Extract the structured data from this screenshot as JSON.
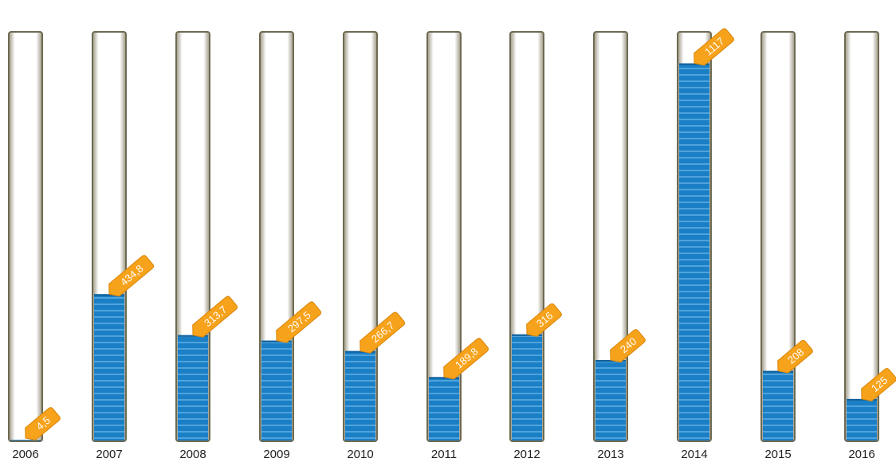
{
  "chart_data": {
    "type": "bar",
    "categories": [
      "2006",
      "2007",
      "2008",
      "2009",
      "2010",
      "2011",
      "2012",
      "2013",
      "2014",
      "2015",
      "2016"
    ],
    "values": [
      4.5,
      434.8,
      313.7,
      297.5,
      266.7,
      189.8,
      316,
      240,
      1117,
      208,
      125
    ],
    "value_labels": [
      "4,5",
      "434,8",
      "313,7",
      "297,5",
      "266,7",
      "189,8",
      "316",
      "240",
      "1117",
      "208",
      "125"
    ],
    "ylim": [
      0,
      1210
    ],
    "title": "",
    "xlabel": "",
    "ylabel": "",
    "grid": false,
    "legend": "none"
  },
  "colors": {
    "bar_fill": "#1b7fc6",
    "bar_stripe": "#4fa3dc",
    "tube_fill": "#ffffff",
    "tube_border": "#6e6a52",
    "tag_fill": "#f7a21b",
    "tag_border": "#d9860a",
    "tag_text": "#ffffff"
  }
}
